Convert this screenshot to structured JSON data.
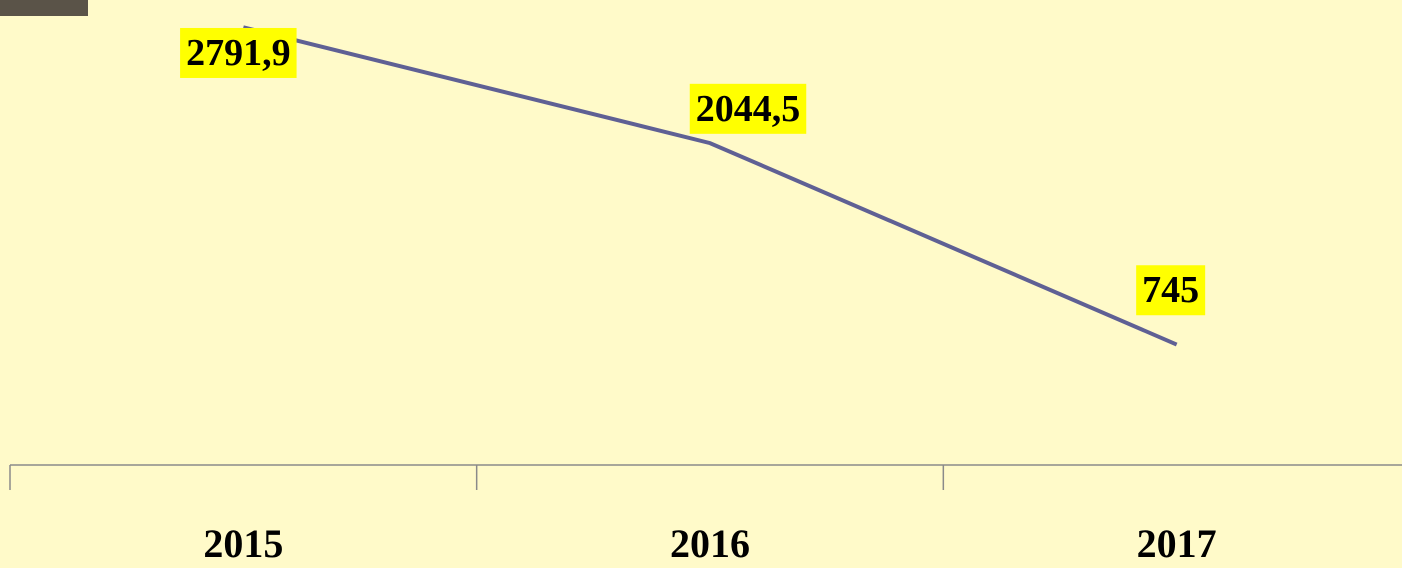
{
  "chart_data": {
    "type": "line",
    "categories": [
      "2015",
      "2016",
      "2017"
    ],
    "values": [
      2791.9,
      2044.5,
      745
    ],
    "value_labels": [
      "2791,9",
      "2044,5",
      "745"
    ],
    "color": "#5f6094"
  }
}
